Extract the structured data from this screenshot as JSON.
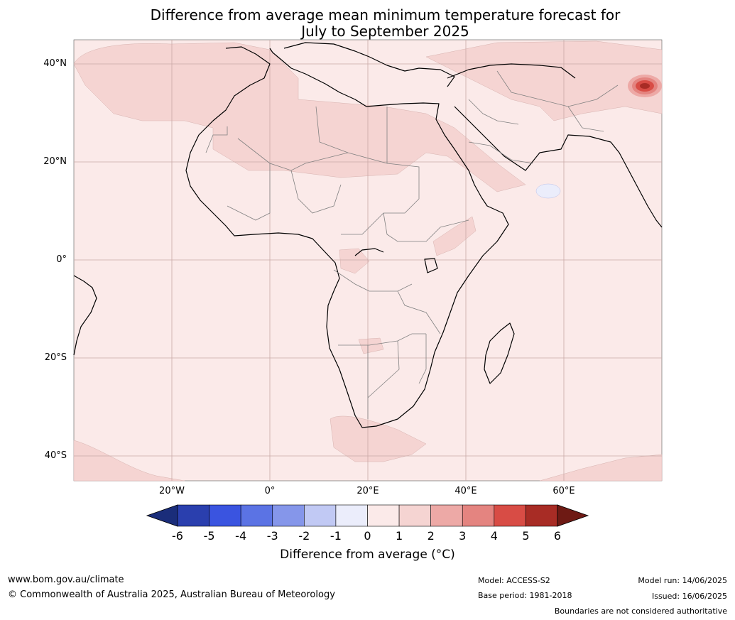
{
  "title": {
    "line1": "Difference from average mean minimum temperature forecast for",
    "line2": "July to September 2025"
  },
  "map": {
    "lat_labels": [
      "40°N",
      "20°N",
      "0°",
      "20°S",
      "40°S"
    ],
    "lon_labels": [
      "20°W",
      "0°",
      "20°E",
      "40°E",
      "60°E"
    ]
  },
  "colorbar": {
    "ticks": [
      "-6",
      "-5",
      "-4",
      "-3",
      "-2",
      "-1",
      "0",
      "1",
      "2",
      "3",
      "4",
      "5",
      "6"
    ],
    "colors": [
      "#1a2d7a",
      "#2a3fae",
      "#3a54e0",
      "#5b73e4",
      "#8596ea",
      "#c1c9f4",
      "#ebedfb",
      "#fbeae9",
      "#f5d4d2",
      "#eda9a6",
      "#e48480",
      "#d84c45",
      "#a82c25",
      "#6e1a14"
    ],
    "label": "Difference from average (°C)"
  },
  "footer": {
    "website": "www.bom.gov.au/climate",
    "copyright": "© Commonwealth of Australia 2025, Australian Bureau of Meteorology",
    "model": "Model: ACCESS-S2",
    "base_period": "Base period: 1981-2018",
    "model_run": "Model run: 14/06/2025",
    "issued": "Issued: 16/06/2025",
    "disclaimer": "Boundaries are not considered authoritative"
  }
}
